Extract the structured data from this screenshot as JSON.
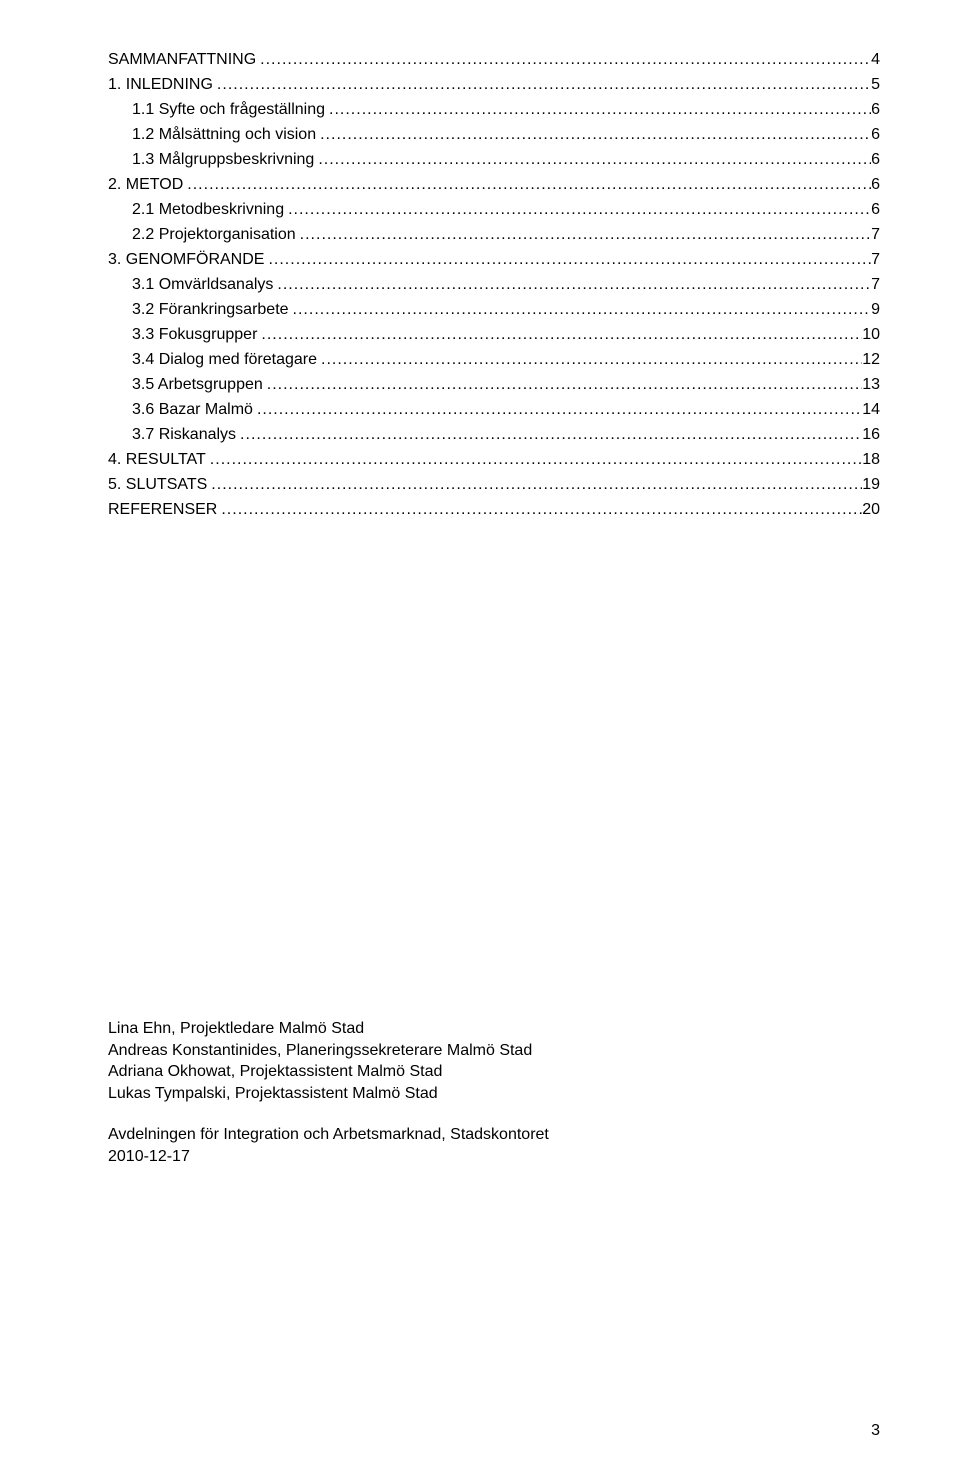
{
  "toc": [
    {
      "label": "SAMMANFATTNING",
      "page": "4",
      "indent": 0
    },
    {
      "label": "1. INLEDNING",
      "page": "5",
      "indent": 0
    },
    {
      "label": "1.1 Syfte och frågeställning",
      "page": "6",
      "indent": 1
    },
    {
      "label": "1.2 Målsättning och vision",
      "page": "6",
      "indent": 1
    },
    {
      "label": "1.3 Målgruppsbeskrivning",
      "page": "6",
      "indent": 1
    },
    {
      "label": "2. METOD",
      "page": "6",
      "indent": 0
    },
    {
      "label": "2.1 Metodbeskrivning",
      "page": "6",
      "indent": 1
    },
    {
      "label": "2.2 Projektorganisation",
      "page": "7",
      "indent": 1
    },
    {
      "label": "3. GENOMFÖRANDE",
      "page": "7",
      "indent": 0
    },
    {
      "label": "3.1 Omvärldsanalys",
      "page": "7",
      "indent": 1
    },
    {
      "label": "3.2 Förankringsarbete",
      "page": "9",
      "indent": 1
    },
    {
      "label": "3.3 Fokusgrupper",
      "page": "10",
      "indent": 1
    },
    {
      "label": "3.4 Dialog med företagare",
      "page": "12",
      "indent": 1
    },
    {
      "label": "3.5 Arbetsgruppen",
      "page": "13",
      "indent": 1
    },
    {
      "label": "3.6 Bazar Malmö",
      "page": "14",
      "indent": 1
    },
    {
      "label": "3.7 Riskanalys",
      "page": "16",
      "indent": 1
    },
    {
      "label": "4. RESULTAT",
      "page": "18",
      "indent": 0
    },
    {
      "label": "5. SLUTSATS",
      "page": "19",
      "indent": 0
    },
    {
      "label": "REFERENSER",
      "page": "20",
      "indent": 0
    }
  ],
  "credits": {
    "line1": "Lina Ehn, Projektledare Malmö Stad",
    "line2": "Andreas Konstantinides, Planeringssekreterare Malmö Stad",
    "line3": "Adriana Okhowat, Projektassistent Malmö Stad",
    "line4": "Lukas Tympalski, Projektassistent Malmö Stad",
    "line5": "Avdelningen för Integration och Arbetsmarknad, Stadskontoret",
    "line6": "2010-12-17"
  },
  "pageNumber": "3",
  "indentPx": 24
}
